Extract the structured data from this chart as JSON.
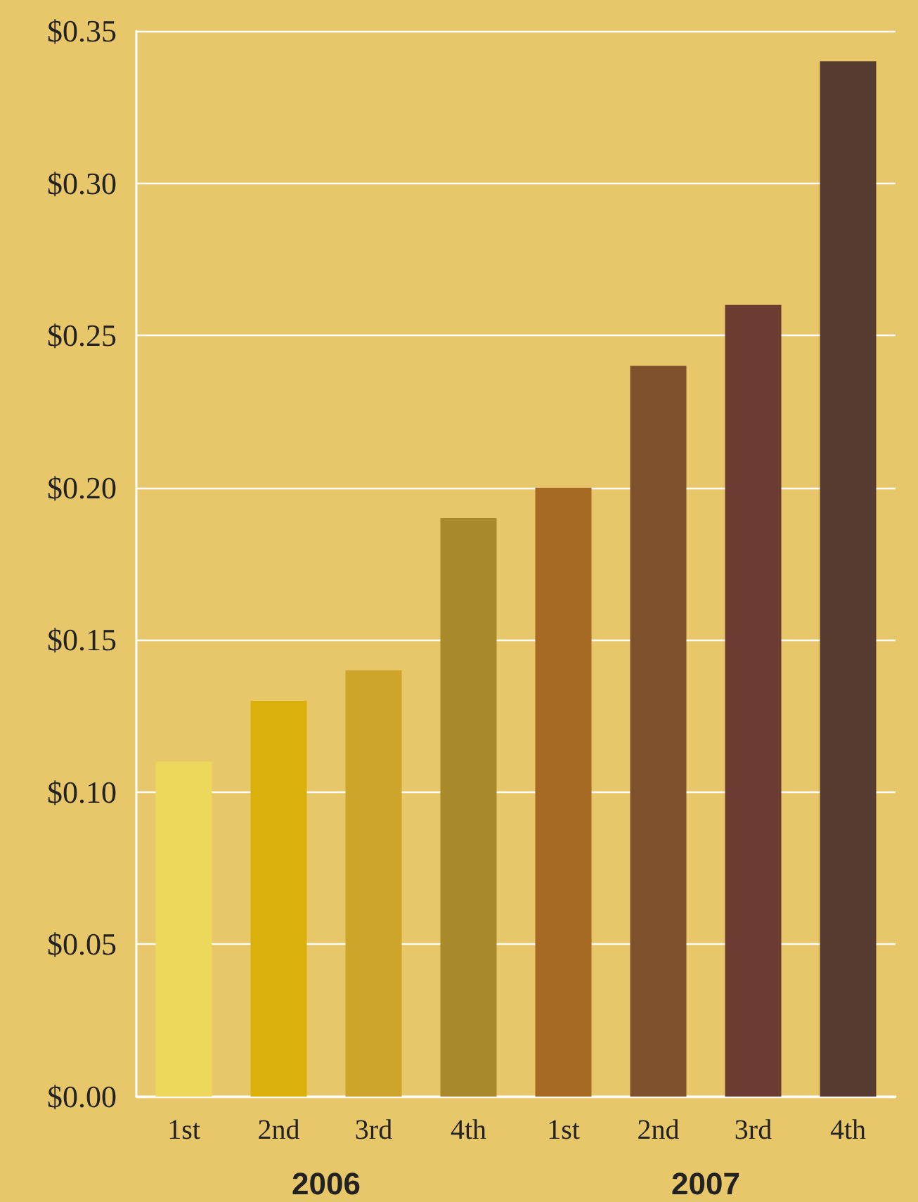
{
  "chart_data": {
    "type": "bar",
    "categories": [
      "1st",
      "2nd",
      "3rd",
      "4th",
      "1st",
      "2nd",
      "3rd",
      "4th"
    ],
    "values": [
      0.11,
      0.13,
      0.14,
      0.19,
      0.2,
      0.24,
      0.26,
      0.34
    ],
    "colors": [
      "#ecd85a",
      "#dcb00a",
      "#cca52a",
      "#aa892c",
      "#a66a25",
      "#80512d",
      "#6c3b31",
      "#583b30"
    ],
    "ylim": [
      0,
      0.35
    ],
    "yticks": [
      {
        "value": 0,
        "label": "$0.00"
      },
      {
        "value": 0.05,
        "label": "$0.05"
      },
      {
        "value": 0.1,
        "label": "$0.10"
      },
      {
        "value": 0.15,
        "label": "$0.15"
      },
      {
        "value": 0.2,
        "label": "$0.20"
      },
      {
        "value": 0.25,
        "label": "$0.25"
      },
      {
        "value": 0.3,
        "label": "$0.30"
      },
      {
        "value": 0.35,
        "label": "$0.35"
      }
    ],
    "grid": "y",
    "annotations": [
      "2006",
      "2007"
    ]
  }
}
